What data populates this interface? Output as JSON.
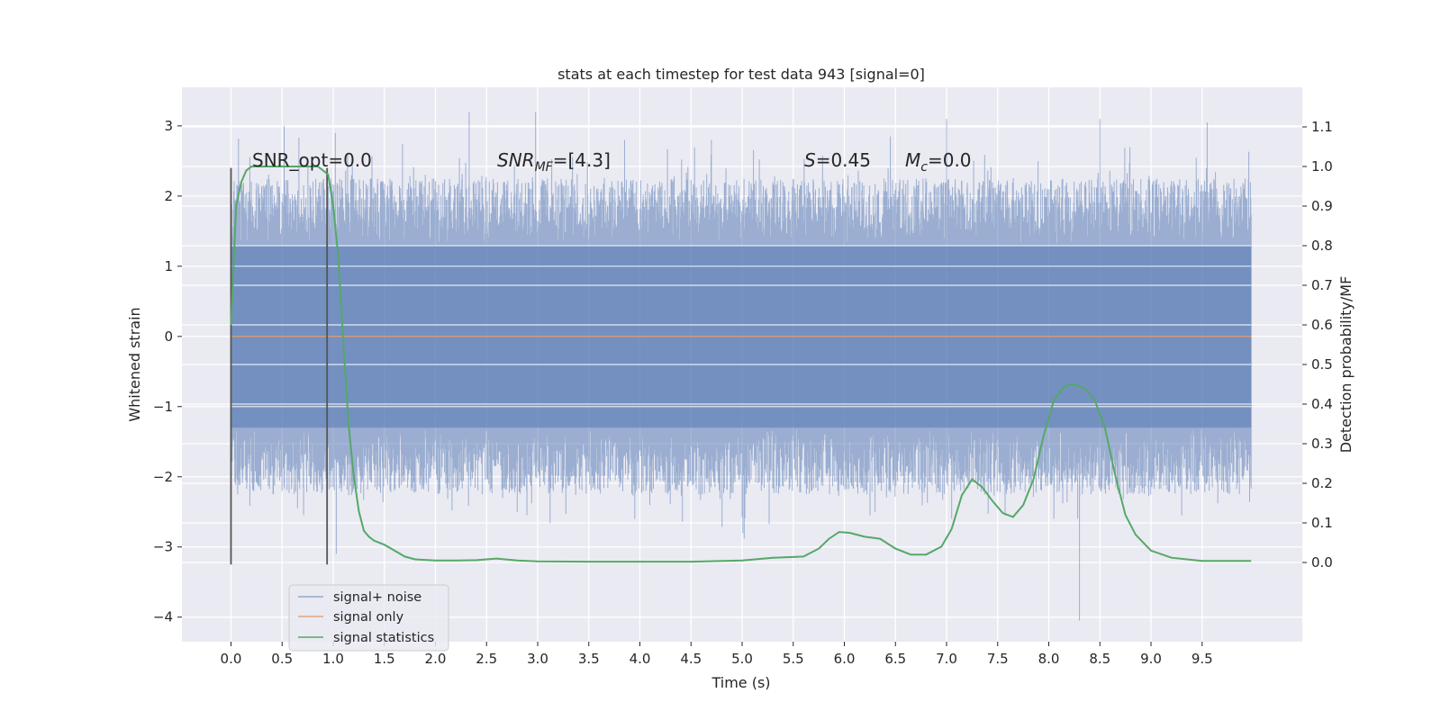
{
  "chart_data": {
    "type": "line",
    "title": "stats at each timestep for test data 943 [signal=0]",
    "xlabel": "Time (s)",
    "ylabel_left": "Whitened strain",
    "ylabel_right": "Detection probability/MF",
    "xlim": [
      -0.48,
      10.48
    ],
    "ylim_left": [
      -4.35,
      3.55
    ],
    "ylim_right": [
      -0.2,
      1.2
    ],
    "x_ticks": [
      0.0,
      0.5,
      1.0,
      1.5,
      2.0,
      2.5,
      3.0,
      3.5,
      4.0,
      4.5,
      5.0,
      5.5,
      6.0,
      6.5,
      7.0,
      7.5,
      8.0,
      8.5,
      9.0,
      9.5
    ],
    "x_tick_labels": [
      "0.0",
      "0.5",
      "1.0",
      "1.5",
      "2.0",
      "2.5",
      "3.0",
      "3.5",
      "4.0",
      "4.5",
      "5.0",
      "5.5",
      "6.0",
      "6.5",
      "7.0",
      "7.5",
      "8.0",
      "8.5",
      "9.0",
      "9.5"
    ],
    "y_left_ticks": [
      3,
      2,
      1,
      0,
      -1,
      -2,
      -3,
      -4
    ],
    "y_left_tick_labels": [
      "3",
      "2",
      "1",
      "0",
      "−1",
      "−2",
      "−3",
      "−4"
    ],
    "y_right_ticks": [
      1.1,
      1.0,
      0.9,
      0.8,
      0.7,
      0.6,
      0.5,
      0.4,
      0.3,
      0.2,
      0.1,
      0.0
    ],
    "y_right_tick_labels": [
      "1.1",
      "1.0",
      "0.9",
      "0.8",
      "0.7",
      "0.6",
      "0.5",
      "0.4",
      "0.3",
      "0.2",
      "0.1",
      "0.0"
    ],
    "grid": true,
    "legend_position": "lower-left",
    "legend": [
      "signal+ noise",
      "signal only",
      "signal statistics"
    ],
    "colors": {
      "noise": "#4c72b0",
      "signal": "#dd8452",
      "stats": "#55a868",
      "background": "#eaeaf2",
      "vline": "#555555"
    },
    "annotations": {
      "snr_opt": "SNR_opt=0.0",
      "snr_mf_prefix": "SNR",
      "snr_mf_sub": "MF",
      "snr_mf_value": "=[4.3]",
      "s_prefix": "S",
      "s_value": "=0.45",
      "mc_prefix": "M",
      "mc_sub": "c",
      "mc_value": "=0.0"
    },
    "noise_band": {
      "x_range": [
        0.0,
        9.98
      ],
      "typical_range": [
        -1.3,
        1.3
      ]
    },
    "noise_peaks": [
      {
        "x": 0.52,
        "y": 3.0
      },
      {
        "x": 1.02,
        "y": 2.9
      },
      {
        "x": 2.33,
        "y": 3.2
      },
      {
        "x": 2.98,
        "y": 3.2
      },
      {
        "x": 3.85,
        "y": 2.8
      },
      {
        "x": 7.0,
        "y": 3.1
      },
      {
        "x": 8.5,
        "y": 3.1
      },
      {
        "x": 9.55,
        "y": 3.05
      },
      {
        "x": 4.7,
        "y": 2.8
      },
      {
        "x": 6.45,
        "y": 2.85
      }
    ],
    "noise_troughs": [
      {
        "x": 8.3,
        "y": -4.05
      },
      {
        "x": 5.02,
        "y": -2.88
      },
      {
        "x": 1.03,
        "y": -3.1
      },
      {
        "x": 3.95,
        "y": -2.6
      },
      {
        "x": 2.8,
        "y": -2.5
      },
      {
        "x": 6.3,
        "y": -2.5
      },
      {
        "x": 0.65,
        "y": -2.45
      },
      {
        "x": 9.3,
        "y": -2.55
      },
      {
        "x": 7.05,
        "y": -2.6
      },
      {
        "x": 8.05,
        "y": -2.6
      }
    ],
    "signal_only": {
      "x": [
        0.0,
        9.98
      ],
      "y": [
        0.0,
        0.0
      ]
    },
    "vlines": [
      {
        "x": 0.0,
        "y": [
          -3.25,
          2.4
        ]
      },
      {
        "x": 0.94,
        "y": [
          -3.25,
          2.4
        ]
      }
    ],
    "signal_statistics": {
      "x": [
        0.0,
        0.05,
        0.1,
        0.15,
        0.2,
        0.3,
        0.5,
        0.7,
        0.85,
        0.95,
        1.0,
        1.05,
        1.1,
        1.15,
        1.2,
        1.25,
        1.3,
        1.35,
        1.4,
        1.5,
        1.6,
        1.7,
        1.8,
        2.0,
        2.2,
        2.4,
        2.6,
        2.8,
        3.0,
        3.5,
        4.0,
        4.5,
        5.0,
        5.3,
        5.6,
        5.75,
        5.85,
        5.95,
        6.05,
        6.2,
        6.35,
        6.5,
        6.65,
        6.8,
        6.95,
        7.05,
        7.15,
        7.25,
        7.35,
        7.45,
        7.55,
        7.65,
        7.75,
        7.85,
        7.95,
        8.05,
        8.15,
        8.25,
        8.35,
        8.45,
        8.55,
        8.65,
        8.75,
        8.85,
        9.0,
        9.2,
        9.5,
        9.98
      ],
      "y": [
        0.6,
        0.9,
        0.96,
        0.99,
        1.0,
        1.0,
        1.0,
        1.0,
        1.0,
        0.98,
        0.9,
        0.77,
        0.55,
        0.35,
        0.22,
        0.13,
        0.08,
        0.065,
        0.055,
        0.045,
        0.03,
        0.015,
        0.008,
        0.005,
        0.005,
        0.006,
        0.01,
        0.005,
        0.003,
        0.002,
        0.002,
        0.002,
        0.005,
        0.012,
        0.015,
        0.035,
        0.06,
        0.077,
        0.075,
        0.065,
        0.06,
        0.035,
        0.02,
        0.02,
        0.04,
        0.085,
        0.17,
        0.21,
        0.19,
        0.155,
        0.125,
        0.115,
        0.145,
        0.21,
        0.32,
        0.41,
        0.445,
        0.45,
        0.44,
        0.41,
        0.34,
        0.22,
        0.12,
        0.07,
        0.03,
        0.012,
        0.004,
        0.004
      ]
    }
  }
}
